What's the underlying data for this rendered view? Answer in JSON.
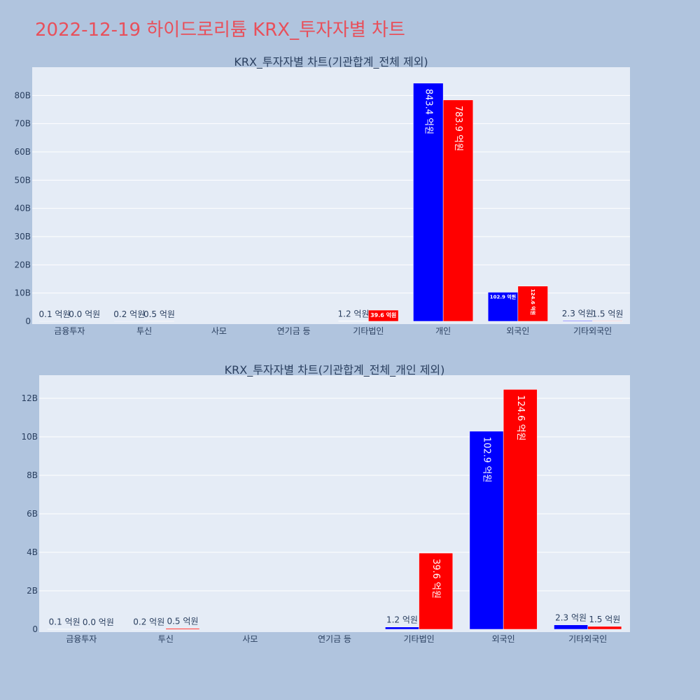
{
  "page": {
    "title": "2022-12-19 하이드로리튬 KRX_투자자별 차트"
  },
  "colors": {
    "buy": "#0000ff",
    "sell": "#ff0000",
    "plot_bg": "#e5ecf6",
    "page_bg": "#b0c4de",
    "title": "#e8505b"
  },
  "chart_data": [
    {
      "type": "bar",
      "title": "KRX_투자자별 차트(기관합계_전체 제외)",
      "categories": [
        "금융투자",
        "투신",
        "사모",
        "연기금 등",
        "기타법인",
        "개인",
        "외국인",
        "기타외국인"
      ],
      "series": [
        {
          "values": [
            0.01,
            0.02,
            0,
            0,
            0.12,
            84.34,
            10.29,
            0.23
          ],
          "labels": [
            "0.1 억원",
            "0.2 억원",
            "",
            "",
            "1.2 억원",
            "843.4 억원",
            "102.9 억원",
            "2.3 억원"
          ]
        },
        {
          "values": [
            0.0,
            0.05,
            0,
            0,
            3.96,
            78.39,
            12.46,
            0.15
          ],
          "labels": [
            "0.0 억원",
            "0.5 억원",
            "",
            "",
            "39.6 억원",
            "783.9 억원",
            "124.6 억원",
            "1.5 억원"
          ]
        }
      ],
      "yticks": [
        "0",
        "10B",
        "20B",
        "30B",
        "40B",
        "50B",
        "60B",
        "70B",
        "80B"
      ],
      "ylim": [
        0,
        90
      ],
      "grid": true
    },
    {
      "type": "bar",
      "title": "KRX_투자자별 차트(기관합계_전체_개인 제외)",
      "categories": [
        "금융투자",
        "투신",
        "사모",
        "연기금 등",
        "기타법인",
        "외국인",
        "기타외국인"
      ],
      "series": [
        {
          "values": [
            0.01,
            0.02,
            0,
            0,
            0.12,
            10.29,
            0.23
          ],
          "labels": [
            "0.1 억원",
            "0.2 억원",
            "",
            "",
            "1.2 억원",
            "102.9 억원",
            "2.3 억원"
          ]
        },
        {
          "values": [
            0.0,
            0.05,
            0,
            0,
            3.96,
            12.46,
            0.15
          ],
          "labels": [
            "0.0 억원",
            "0.5 억원",
            "",
            "",
            "39.6 억원",
            "124.6 억원",
            "1.5 억원"
          ]
        }
      ],
      "yticks": [
        "0",
        "2B",
        "4B",
        "6B",
        "8B",
        "10B",
        "12B"
      ],
      "ylim": [
        0,
        13.2
      ],
      "grid": true
    }
  ]
}
